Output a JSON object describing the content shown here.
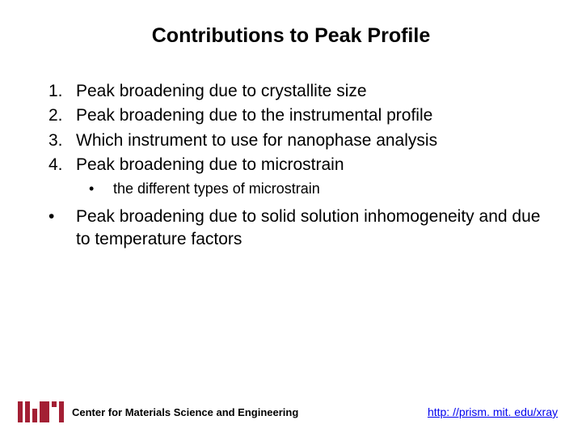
{
  "title": "Contributions to Peak Profile",
  "numbered": [
    "Peak broadening due to crystallite size",
    "Peak broadening due to the instrumental profile",
    "Which instrument to use for nanophase analysis",
    "Peak broadening due to microstrain"
  ],
  "sub_bullet": "the different types of microstrain",
  "bullet": "Peak broadening due to solid solution inhomogeneity and due to temperature factors",
  "footer": {
    "org": "Center for Materials Science and Engineering",
    "link": "http: //prism. mit. edu/xray"
  },
  "colors": {
    "mit_red": "#a31f34",
    "link_blue": "#0000ee",
    "text": "#000000",
    "background": "#ffffff"
  }
}
